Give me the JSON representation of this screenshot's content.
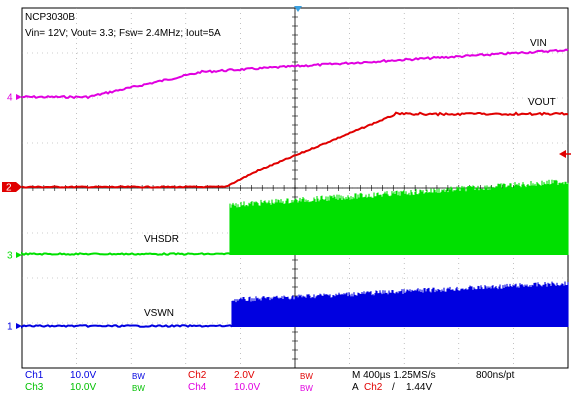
{
  "header": {
    "title": "NCP3030B",
    "conditions": "Vin= 12V; Vout= 3.3; Fsw= 2.4MHz; Iout=5A"
  },
  "traces": {
    "vin": {
      "label": "VIN",
      "marker": "4",
      "color": "#e000e0"
    },
    "vout": {
      "label": "VOUT",
      "marker": "2",
      "color": "#e00000"
    },
    "vhsdr": {
      "label": "VHSDR",
      "marker": "3",
      "color": "#00e000"
    },
    "vswn": {
      "label": "VSWN",
      "marker": "1",
      "color": "#0000e0"
    }
  },
  "status": {
    "row1": {
      "ch1": "Ch1",
      "ch1_scale": "10.0V",
      "ch1_bw": "BW",
      "ch2": "Ch2",
      "ch2_scale": "2.0V",
      "ch2_bw": "BW",
      "timebase": "M 400µs 1.25MS/s",
      "resolution": "800ns/pt"
    },
    "row2": {
      "ch3": "Ch3",
      "ch3_scale": "10.0V",
      "ch3_bw": "BW",
      "ch4": "Ch4",
      "ch4_scale": "10.0V",
      "ch4_bw": "BW",
      "trigger_prefix": "A",
      "trigger_source": "Ch2",
      "trigger_slope": "/",
      "trigger_level": "1.44V"
    }
  }
}
